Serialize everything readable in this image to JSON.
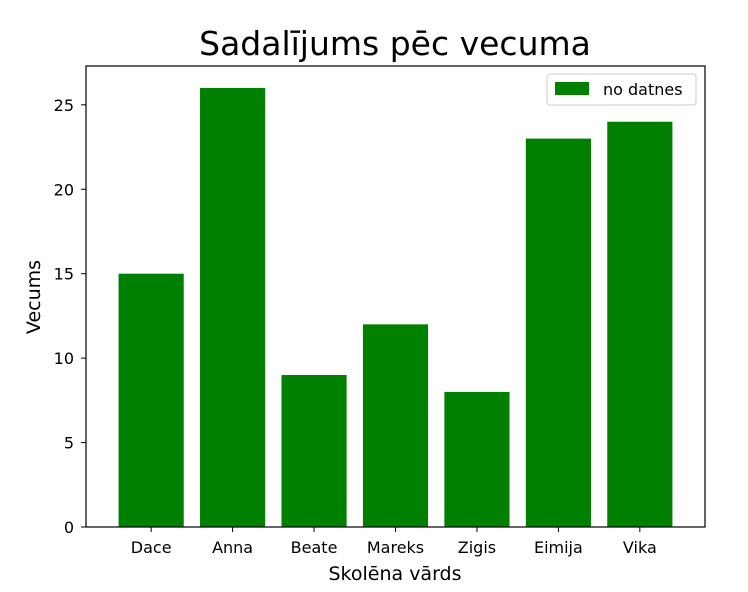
{
  "chart_data": {
    "type": "bar",
    "title": "Sadalījums pēc vecuma",
    "xlabel": "Skolēna vārds",
    "ylabel": "Vecums",
    "categories": [
      "Dace",
      "Anna",
      "Beate",
      "Mareks",
      "Zigis",
      "Eimija",
      "Vika"
    ],
    "series": [
      {
        "name": "no datnes",
        "values": [
          15,
          26,
          9,
          12,
          8,
          23,
          24
        ],
        "color": "#008000"
      }
    ],
    "ylim": [
      0,
      27.3
    ],
    "yticks": [
      "0",
      "5",
      "10",
      "15",
      "20",
      "25"
    ],
    "grid": false,
    "legend_position": "top-right"
  }
}
